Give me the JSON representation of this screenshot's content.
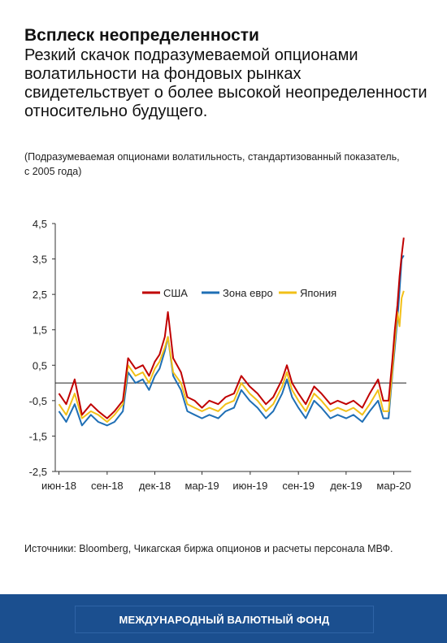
{
  "header": {
    "title": "Всплеск неопределенности",
    "subtitle": "Резкий скачок подразумеваемой опционами волатильности на фондовых рынках свидетельствует о более высокой неопределенности относительно будущего.",
    "note": "(Подразумеваемая опционами волатильность, стандартизованный показатель, с 2005 года)"
  },
  "source": "Источники: Bloomberg, Чикагская биржа опционов и расчеты персонала МВФ.",
  "footer": {
    "label": "МЕЖДУНАРОДНЫЙ ВАЛЮТНЫЙ ФОНД"
  },
  "chart_data": {
    "type": "line",
    "title": "",
    "xlabel": "",
    "ylabel": "",
    "ylim": [
      -2.5,
      4.5
    ],
    "y_ticks": [
      "4,5",
      "3,5",
      "2,5",
      "1,5",
      "0,5",
      "-0,5",
      "-1,5",
      "-2,5"
    ],
    "y_tick_values": [
      4.5,
      3.5,
      2.5,
      1.5,
      0.5,
      -0.5,
      -1.5,
      -2.5
    ],
    "x_tick_labels": [
      "июн-18",
      "сен-18",
      "дек-18",
      "мар-19",
      "июн-19",
      "сен-19",
      "дек-19",
      "мар-20"
    ],
    "reference_line": 0,
    "grid": false,
    "legend_position": "top-center",
    "x": [
      "2018-06-01",
      "2018-06-15",
      "2018-07-01",
      "2018-07-15",
      "2018-08-01",
      "2018-08-15",
      "2018-09-01",
      "2018-09-15",
      "2018-10-01",
      "2018-10-11",
      "2018-10-25",
      "2018-11-08",
      "2018-11-20",
      "2018-12-01",
      "2018-12-10",
      "2018-12-20",
      "2018-12-26",
      "2019-01-05",
      "2019-01-20",
      "2019-02-01",
      "2019-02-15",
      "2019-03-01",
      "2019-03-15",
      "2019-04-01",
      "2019-04-15",
      "2019-05-01",
      "2019-05-15",
      "2019-05-31",
      "2019-06-15",
      "2019-07-01",
      "2019-07-15",
      "2019-08-01",
      "2019-08-10",
      "2019-08-20",
      "2019-09-01",
      "2019-09-15",
      "2019-10-01",
      "2019-10-15",
      "2019-11-01",
      "2019-11-15",
      "2019-12-01",
      "2019-12-15",
      "2020-01-01",
      "2020-01-15",
      "2020-01-31",
      "2020-02-10",
      "2020-02-20",
      "2020-02-27",
      "2020-03-03",
      "2020-03-08",
      "2020-03-12",
      "2020-03-16",
      "2020-03-20"
    ],
    "series": [
      {
        "name": "США",
        "color": "#c00000",
        "values": [
          -0.3,
          -0.6,
          0.1,
          -0.9,
          -0.6,
          -0.8,
          -1.0,
          -0.8,
          -0.5,
          0.7,
          0.4,
          0.5,
          0.2,
          0.6,
          0.8,
          1.3,
          2.0,
          0.7,
          0.3,
          -0.4,
          -0.5,
          -0.7,
          -0.5,
          -0.6,
          -0.4,
          -0.3,
          0.2,
          -0.1,
          -0.3,
          -0.6,
          -0.4,
          0.1,
          0.5,
          0.0,
          -0.3,
          -0.6,
          -0.1,
          -0.3,
          -0.6,
          -0.5,
          -0.6,
          -0.5,
          -0.7,
          -0.3,
          0.1,
          -0.5,
          -0.5,
          0.6,
          1.5,
          2.2,
          3.0,
          3.6,
          4.1
        ]
      },
      {
        "name": "Зона евро",
        "color": "#1f6fb5",
        "values": [
          -0.8,
          -1.1,
          -0.6,
          -1.2,
          -0.9,
          -1.1,
          -1.2,
          -1.1,
          -0.8,
          0.3,
          0.0,
          0.1,
          -0.2,
          0.2,
          0.4,
          0.9,
          1.3,
          0.2,
          -0.2,
          -0.8,
          -0.9,
          -1.0,
          -0.9,
          -1.0,
          -0.8,
          -0.7,
          -0.2,
          -0.5,
          -0.7,
          -1.0,
          -0.8,
          -0.3,
          0.1,
          -0.4,
          -0.7,
          -1.0,
          -0.5,
          -0.7,
          -1.0,
          -0.9,
          -1.0,
          -0.9,
          -1.1,
          -0.8,
          -0.5,
          -1.0,
          -1.0,
          0.2,
          1.0,
          1.8,
          2.6,
          3.5,
          3.6
        ]
      },
      {
        "name": "Япония",
        "color": "#f2c018",
        "values": [
          -0.6,
          -0.9,
          -0.3,
          -1.0,
          -0.8,
          -0.9,
          -1.1,
          -0.9,
          -0.6,
          0.5,
          0.2,
          0.3,
          0.0,
          0.4,
          0.6,
          1.0,
          1.3,
          0.3,
          0.0,
          -0.6,
          -0.7,
          -0.8,
          -0.7,
          -0.8,
          -0.6,
          -0.5,
          0.0,
          -0.3,
          -0.5,
          -0.8,
          -0.6,
          -0.1,
          0.3,
          -0.2,
          -0.5,
          -0.8,
          -0.3,
          -0.5,
          -0.8,
          -0.7,
          -0.8,
          -0.7,
          -0.9,
          -0.6,
          -0.2,
          -0.8,
          -0.8,
          0.3,
          1.2,
          2.0,
          1.6,
          2.4,
          2.6
        ]
      }
    ]
  }
}
